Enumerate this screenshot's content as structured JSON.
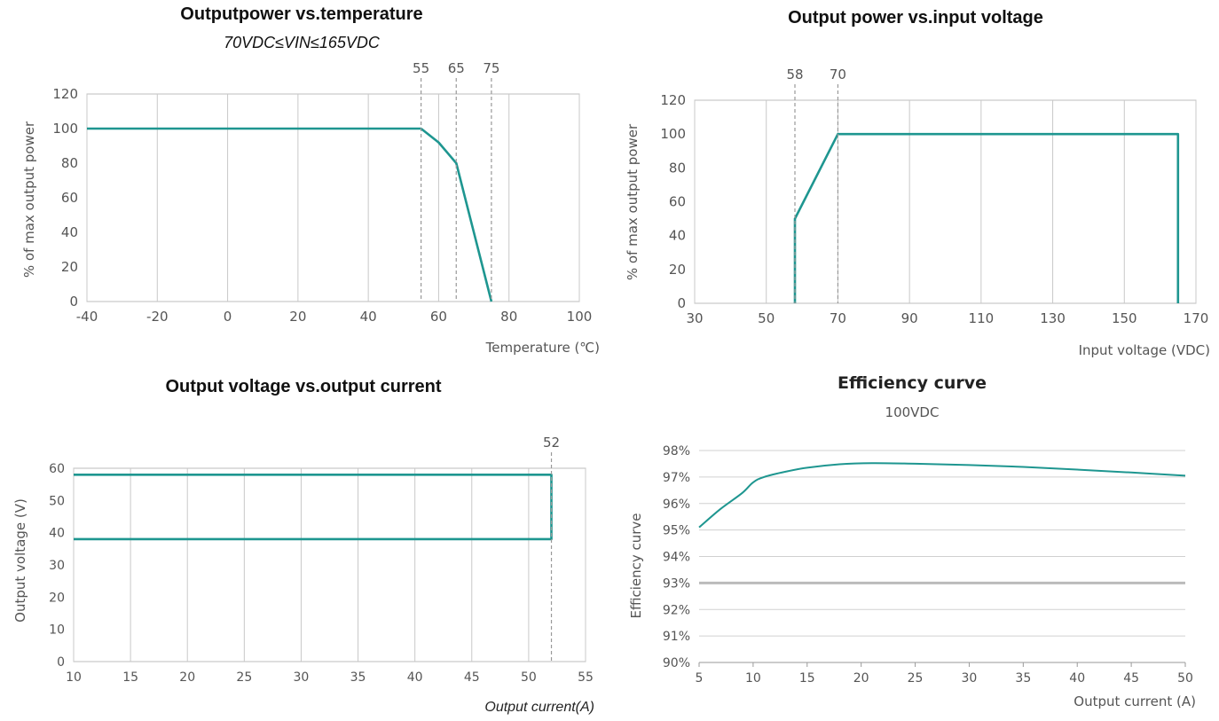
{
  "colors": {
    "series": "#1e9690",
    "grid": "#c8c8c8",
    "text": "#555555"
  },
  "chart_data": [
    {
      "type": "line",
      "title": "Outputpower  vs.temperature",
      "subtitle": "70VDC≤VIN≤165VDC",
      "xlabel": "Temperature (℃)",
      "ylabel": "% of max output power",
      "xlim": [
        -40,
        100
      ],
      "ylim": [
        0,
        120
      ],
      "x_ticks": [
        "-40",
        "-20",
        "0",
        "20",
        "40",
        "60",
        "80",
        "100"
      ],
      "y_ticks": [
        "0",
        "20",
        "40",
        "60",
        "80",
        "100",
        "120"
      ],
      "markers": [
        "55",
        "65",
        "75"
      ],
      "x": [
        -40,
        55,
        60,
        65,
        75
      ],
      "y": [
        100,
        100,
        92,
        80,
        0
      ],
      "grid": "vertical"
    },
    {
      "type": "line",
      "title": "Output power vs.input voltage",
      "xlabel": "Input voltage (VDC)",
      "ylabel": "% of max output power",
      "xlim": [
        30,
        170
      ],
      "ylim": [
        0,
        120
      ],
      "x_ticks": [
        "30",
        "50",
        "70",
        "90",
        "110",
        "130",
        "150",
        "170"
      ],
      "y_ticks": [
        "0",
        "20",
        "40",
        "60",
        "80",
        "100",
        "120"
      ],
      "markers": [
        "58",
        "70"
      ],
      "x": [
        58,
        58,
        70,
        165,
        165
      ],
      "y": [
        0,
        50,
        100,
        100,
        0
      ],
      "grid": "vertical"
    },
    {
      "type": "line",
      "title": "Output voltage vs.output current",
      "xlabel": "Output current(A)",
      "ylabel": "Output voltage (V)",
      "xlim": [
        10,
        55
      ],
      "ylim": [
        0,
        60
      ],
      "x_ticks": [
        "10",
        "15",
        "20",
        "25",
        "30",
        "35",
        "40",
        "45",
        "50",
        "55"
      ],
      "y_ticks": [
        "0",
        "10",
        "20",
        "30",
        "40",
        "50",
        "60"
      ],
      "markers": [
        "52"
      ],
      "series": [
        {
          "x": [
            10,
            52,
            52,
            10
          ],
          "y": [
            58,
            58,
            38,
            38
          ]
        }
      ],
      "grid": "vertical"
    },
    {
      "type": "line",
      "title": "Efficiency curve",
      "subtitle": "100VDC",
      "xlabel": "Output current (A)",
      "ylabel": "Efficiency curve",
      "xlim": [
        5,
        50
      ],
      "ylim": [
        90,
        98
      ],
      "x_ticks": [
        "5",
        "10",
        "15",
        "20",
        "25",
        "30",
        "35",
        "40",
        "45",
        "50"
      ],
      "y_ticks": [
        "90%",
        "91%",
        "92%",
        "93%",
        "94%",
        "95%",
        "96%",
        "97%",
        "98%"
      ],
      "x": [
        5,
        7,
        9,
        10,
        11,
        13,
        15,
        18,
        21,
        25,
        30,
        35,
        40,
        45,
        50
      ],
      "y": [
        95.1,
        95.8,
        96.4,
        96.8,
        97.0,
        97.2,
        97.35,
        97.48,
        97.52,
        97.5,
        97.45,
        97.38,
        97.28,
        97.17,
        97.05
      ],
      "grid": "horizontal"
    }
  ]
}
